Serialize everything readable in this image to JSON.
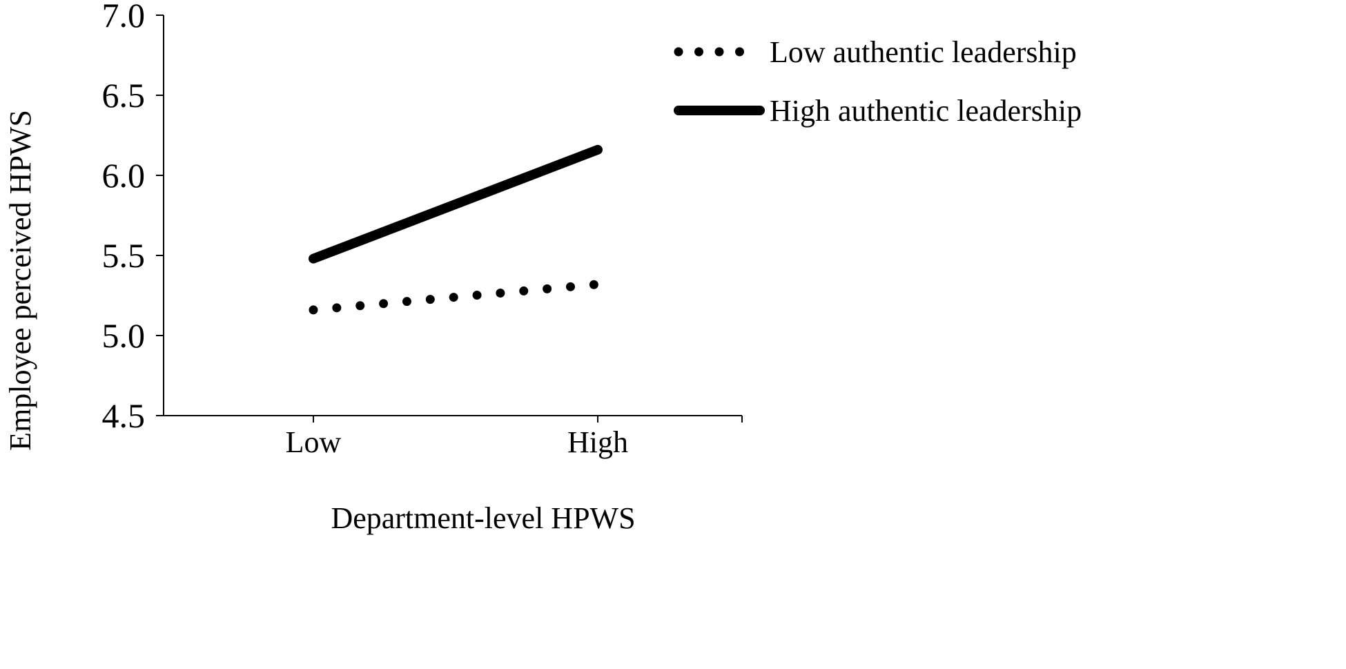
{
  "chart_data": {
    "type": "line",
    "title": "",
    "xlabel": "Department-level HPWS",
    "ylabel": "Employee perceived HPWS",
    "categories": [
      "Low",
      "High"
    ],
    "ylim": [
      4.5,
      7.0
    ],
    "yticks": [
      "4.5",
      "5.0",
      "5.5",
      "6.0",
      "6.5",
      "7.0"
    ],
    "yticks_values": [
      4.5,
      5.0,
      5.5,
      6.0,
      6.5,
      7.0
    ],
    "grid": false,
    "legend_position": "top-right",
    "series": [
      {
        "name": "Low authentic leadership",
        "values": [
          5.16,
          5.32
        ],
        "style": "dotted",
        "color": "#000000"
      },
      {
        "name": "High authentic leadership",
        "values": [
          5.48,
          6.16
        ],
        "style": "solid",
        "color": "#000000"
      }
    ]
  }
}
